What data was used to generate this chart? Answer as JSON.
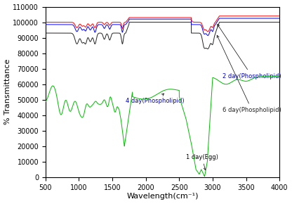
{
  "title": "",
  "xlabel": "Wavelength(cm⁻¹)",
  "ylabel": "% Transmittance",
  "xlim": [
    500,
    4000
  ],
  "ylim": [
    0,
    110000
  ],
  "yticks": [
    0,
    10000,
    20000,
    30000,
    40000,
    50000,
    60000,
    70000,
    80000,
    90000,
    100000,
    110000
  ],
  "xticks": [
    500,
    1000,
    1500,
    2000,
    2500,
    3000,
    3500,
    4000
  ],
  "line_colors": {
    "red": "#ff0000",
    "blue": "#0000ff",
    "black": "#222222",
    "green": "#00bb00"
  },
  "background_color": "#ffffff",
  "font_size": 7
}
